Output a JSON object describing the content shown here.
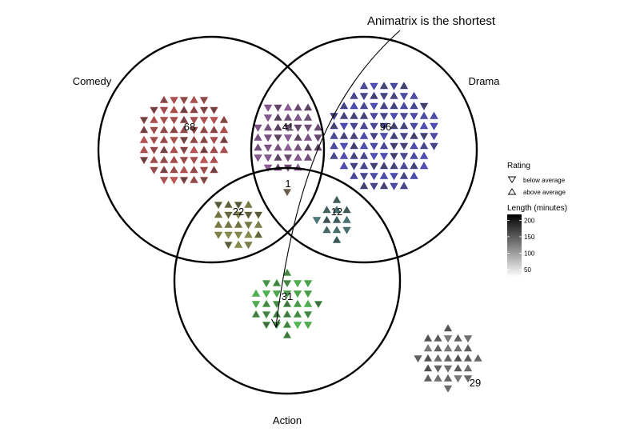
{
  "chart_data": {
    "type": "venn-dot",
    "sets": [
      {
        "id": "comedy",
        "label": "Comedy",
        "color": "#b22222"
      },
      {
        "id": "drama",
        "label": "Drama",
        "color": "#1a1aa6"
      },
      {
        "id": "action",
        "label": "Action",
        "color": "#22aa22"
      }
    ],
    "regions": [
      {
        "id": "comedy-only",
        "sets": [
          "comedy"
        ],
        "count": 68,
        "count_label": "68",
        "color": "#b22222"
      },
      {
        "id": "comedy-drama",
        "sets": [
          "comedy",
          "drama"
        ],
        "count": 41,
        "count_label": "41",
        "color": "#6b2c7a"
      },
      {
        "id": "drama-only",
        "sets": [
          "drama"
        ],
        "count": 96,
        "count_label": "96",
        "color": "#1a1aa6"
      },
      {
        "id": "comedy-drama-action",
        "sets": [
          "comedy",
          "drama",
          "action"
        ],
        "count": 1,
        "count_label": "1",
        "color": "#7a5a3a"
      },
      {
        "id": "comedy-action",
        "sets": [
          "comedy",
          "action"
        ],
        "count": 22,
        "count_label": "22",
        "color": "#6b6b1a"
      },
      {
        "id": "drama-action",
        "sets": [
          "drama",
          "action"
        ],
        "count": 12,
        "count_label": "12",
        "color": "#1a5555"
      },
      {
        "id": "action-only",
        "sets": [
          "action"
        ],
        "count": 31,
        "count_label": "31",
        "color": "#22aa22"
      },
      {
        "id": "none",
        "sets": [],
        "count": 29,
        "count_label": "29",
        "color": "#555555"
      }
    ],
    "annotation": {
      "text": "Animatrix is the shortest",
      "target_region": "action-only"
    },
    "legend": {
      "shape_title": "Rating",
      "shape_items": [
        {
          "shape": "triangle-down",
          "label": "below average"
        },
        {
          "shape": "triangle-up",
          "label": "above average"
        }
      ],
      "color_title": "Length (minutes)",
      "color_ticks": [
        "200",
        "150",
        "100",
        "50"
      ],
      "color_tick_values": [
        200,
        150,
        100,
        50
      ],
      "color_range": [
        30,
        220
      ],
      "placement": "right"
    }
  }
}
